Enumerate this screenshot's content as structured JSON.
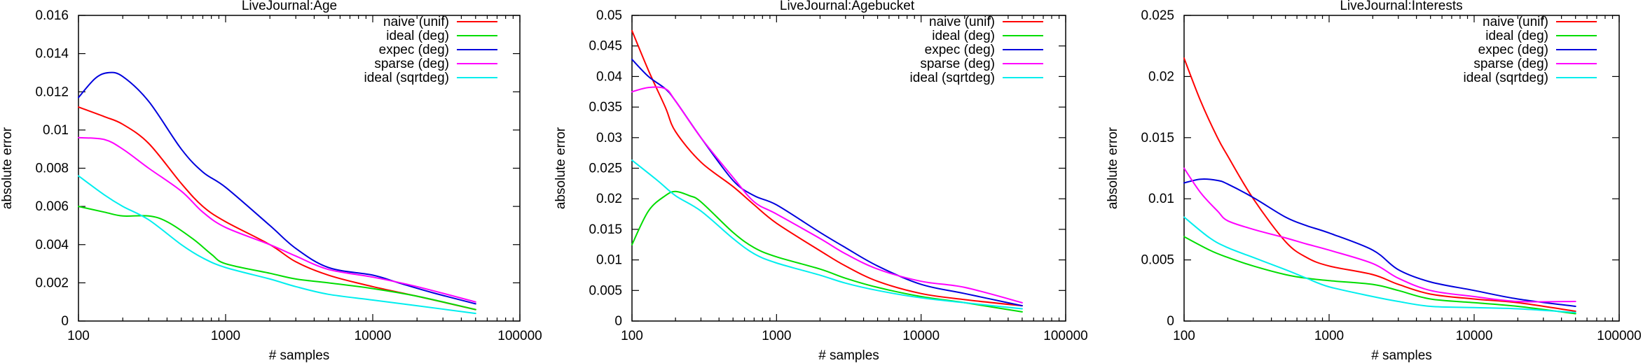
{
  "chart_data": [
    {
      "type": "line",
      "title": "LiveJournal:Age",
      "xlabel": "# samples",
      "ylabel": "absolute error",
      "xscale": "log",
      "xlim": [
        100,
        100000
      ],
      "ylim": [
        0,
        0.016
      ],
      "xticks": [
        100,
        1000,
        10000,
        100000
      ],
      "xtick_labels": [
        "100",
        "1000",
        "10000",
        "100000"
      ],
      "yticks": [
        0,
        0.002,
        0.004,
        0.006,
        0.008,
        0.01,
        0.012,
        0.014,
        0.016
      ],
      "ytick_labels": [
        "0",
        "0.002",
        "0.004",
        "0.006",
        "0.008",
        "0.01",
        "0.012",
        "0.014",
        "0.016"
      ],
      "legend_position": "top-right",
      "grid": false,
      "series": [
        {
          "name": "naive (unif)",
          "color": "#ff0000",
          "points": [
            [
              100,
              0.0112
            ],
            [
              150,
              0.0107
            ],
            [
              200,
              0.0103
            ],
            [
              300,
              0.0093
            ],
            [
              500,
              0.0072
            ],
            [
              700,
              0.006
            ],
            [
              1000,
              0.0052
            ],
            [
              2000,
              0.004
            ],
            [
              3000,
              0.0031
            ],
            [
              5000,
              0.0024
            ],
            [
              10000,
              0.0018
            ],
            [
              20000,
              0.0013
            ],
            [
              50000,
              0.0006
            ]
          ]
        },
        {
          "name": "ideal (deg)",
          "color": "#00dd00",
          "points": [
            [
              100,
              0.006
            ],
            [
              150,
              0.0057
            ],
            [
              200,
              0.0055
            ],
            [
              300,
              0.0055
            ],
            [
              400,
              0.0052
            ],
            [
              600,
              0.0043
            ],
            [
              800,
              0.0035
            ],
            [
              1000,
              0.003
            ],
            [
              2000,
              0.0025
            ],
            [
              3000,
              0.0022
            ],
            [
              5000,
              0.002
            ],
            [
              10000,
              0.0017
            ],
            [
              20000,
              0.0013
            ],
            [
              50000,
              0.0006
            ]
          ]
        },
        {
          "name": "expec (deg)",
          "color": "#0000dd",
          "points": [
            [
              100,
              0.0117
            ],
            [
              130,
              0.0127
            ],
            [
              160,
              0.013
            ],
            [
              200,
              0.0128
            ],
            [
              300,
              0.0115
            ],
            [
              500,
              0.009
            ],
            [
              700,
              0.0078
            ],
            [
              1000,
              0.007
            ],
            [
              2000,
              0.005
            ],
            [
              3000,
              0.0038
            ],
            [
              5000,
              0.0028
            ],
            [
              10000,
              0.0024
            ],
            [
              15000,
              0.002
            ],
            [
              25000,
              0.0015
            ],
            [
              50000,
              0.0009
            ]
          ]
        },
        {
          "name": "sparse (deg)",
          "color": "#ff00ff",
          "points": [
            [
              100,
              0.0096
            ],
            [
              150,
              0.0095
            ],
            [
              200,
              0.009
            ],
            [
              300,
              0.008
            ],
            [
              500,
              0.0068
            ],
            [
              700,
              0.0057
            ],
            [
              1000,
              0.0049
            ],
            [
              2000,
              0.004
            ],
            [
              3000,
              0.0034
            ],
            [
              5000,
              0.0027
            ],
            [
              10000,
              0.0023
            ],
            [
              20000,
              0.0018
            ],
            [
              50000,
              0.001
            ]
          ]
        },
        {
          "name": "ideal (sqrtdeg)",
          "color": "#00eeee",
          "points": [
            [
              100,
              0.0076
            ],
            [
              150,
              0.0066
            ],
            [
              200,
              0.006
            ],
            [
              300,
              0.0053
            ],
            [
              500,
              0.004
            ],
            [
              700,
              0.0033
            ],
            [
              1000,
              0.0028
            ],
            [
              2000,
              0.0022
            ],
            [
              3000,
              0.0018
            ],
            [
              5000,
              0.0014
            ],
            [
              10000,
              0.0011
            ],
            [
              20000,
              0.0008
            ],
            [
              50000,
              0.0004
            ]
          ]
        }
      ]
    },
    {
      "type": "line",
      "title": "LiveJournal:Agebucket",
      "xlabel": "# samples",
      "ylabel": "absolute error",
      "xscale": "log",
      "xlim": [
        100,
        100000
      ],
      "ylim": [
        0,
        0.05
      ],
      "xticks": [
        100,
        1000,
        10000,
        100000
      ],
      "xtick_labels": [
        "100",
        "1000",
        "10000",
        "100000"
      ],
      "yticks": [
        0,
        0.005,
        0.01,
        0.015,
        0.02,
        0.025,
        0.03,
        0.035,
        0.04,
        0.045,
        0.05
      ],
      "ytick_labels": [
        "0",
        "0.005",
        "0.01",
        "0.015",
        "0.02",
        "0.025",
        "0.03",
        "0.035",
        "0.04",
        "0.045",
        "0.05"
      ],
      "legend_position": "top-right",
      "grid": false,
      "series": [
        {
          "name": "naive (unif)",
          "color": "#ff0000",
          "points": [
            [
              100,
              0.0475
            ],
            [
              130,
              0.041
            ],
            [
              170,
              0.035
            ],
            [
              200,
              0.031
            ],
            [
              300,
              0.026
            ],
            [
              500,
              0.022
            ],
            [
              700,
              0.019
            ],
            [
              1000,
              0.016
            ],
            [
              2000,
              0.0115
            ],
            [
              3000,
              0.009
            ],
            [
              5000,
              0.0065
            ],
            [
              10000,
              0.0045
            ],
            [
              20000,
              0.0035
            ],
            [
              50000,
              0.0025
            ]
          ]
        },
        {
          "name": "ideal (deg)",
          "color": "#00dd00",
          "points": [
            [
              100,
              0.0125
            ],
            [
              130,
              0.018
            ],
            [
              170,
              0.0205
            ],
            [
              200,
              0.0212
            ],
            [
              250,
              0.0205
            ],
            [
              300,
              0.0195
            ],
            [
              500,
              0.0145
            ],
            [
              700,
              0.012
            ],
            [
              1000,
              0.0105
            ],
            [
              2000,
              0.0085
            ],
            [
              3000,
              0.007
            ],
            [
              5000,
              0.0055
            ],
            [
              10000,
              0.004
            ],
            [
              20000,
              0.003
            ],
            [
              50000,
              0.0015
            ]
          ]
        },
        {
          "name": "expec (deg)",
          "color": "#0000dd",
          "points": [
            [
              100,
              0.0428
            ],
            [
              130,
              0.04
            ],
            [
              170,
              0.038
            ],
            [
              200,
              0.036
            ],
            [
              300,
              0.03
            ],
            [
              500,
              0.023
            ],
            [
              700,
              0.0205
            ],
            [
              1000,
              0.019
            ],
            [
              2000,
              0.0145
            ],
            [
              3000,
              0.012
            ],
            [
              5000,
              0.009
            ],
            [
              10000,
              0.006
            ],
            [
              20000,
              0.0045
            ],
            [
              50000,
              0.0025
            ]
          ]
        },
        {
          "name": "sparse (deg)",
          "color": "#ff00ff",
          "points": [
            [
              100,
              0.0375
            ],
            [
              130,
              0.0382
            ],
            [
              170,
              0.038
            ],
            [
              200,
              0.036
            ],
            [
              300,
              0.03
            ],
            [
              500,
              0.0235
            ],
            [
              700,
              0.0195
            ],
            [
              1000,
              0.0175
            ],
            [
              2000,
              0.0135
            ],
            [
              3000,
              0.011
            ],
            [
              5000,
              0.0085
            ],
            [
              10000,
              0.0065
            ],
            [
              20000,
              0.0055
            ],
            [
              50000,
              0.003
            ]
          ]
        },
        {
          "name": "ideal (sqrtdeg)",
          "color": "#00eeee",
          "points": [
            [
              100,
              0.0263
            ],
            [
              150,
              0.023
            ],
            [
              200,
              0.0205
            ],
            [
              300,
              0.018
            ],
            [
              500,
              0.0135
            ],
            [
              700,
              0.011
            ],
            [
              1000,
              0.0095
            ],
            [
              2000,
              0.0075
            ],
            [
              3000,
              0.0062
            ],
            [
              5000,
              0.005
            ],
            [
              10000,
              0.0038
            ],
            [
              20000,
              0.003
            ],
            [
              50000,
              0.002
            ]
          ]
        }
      ]
    },
    {
      "type": "line",
      "title": "LiveJournal:Interests",
      "xlabel": "# samples",
      "ylabel": "absolute error",
      "xscale": "log",
      "xlim": [
        100,
        100000
      ],
      "ylim": [
        0,
        0.025
      ],
      "xticks": [
        100,
        1000,
        10000,
        100000
      ],
      "xtick_labels": [
        "100",
        "1000",
        "10000",
        "100000"
      ],
      "yticks": [
        0,
        0.005,
        0.01,
        0.015,
        0.02,
        0.025
      ],
      "ytick_labels": [
        "0",
        "0.005",
        "0.01",
        "0.015",
        "0.02",
        "0.025"
      ],
      "legend_position": "top-right",
      "grid": false,
      "series": [
        {
          "name": "naive (unif)",
          "color": "#ff0000",
          "points": [
            [
              100,
              0.0215
            ],
            [
              130,
              0.018
            ],
            [
              170,
              0.015
            ],
            [
              200,
              0.0135
            ],
            [
              300,
              0.01
            ],
            [
              500,
              0.0065
            ],
            [
              700,
              0.0052
            ],
            [
              1000,
              0.0045
            ],
            [
              2000,
              0.0038
            ],
            [
              3000,
              0.003
            ],
            [
              5000,
              0.0022
            ],
            [
              10000,
              0.0018
            ],
            [
              20000,
              0.0015
            ],
            [
              50000,
              0.0008
            ]
          ]
        },
        {
          "name": "ideal (deg)",
          "color": "#00dd00",
          "points": [
            [
              100,
              0.0069
            ],
            [
              150,
              0.0058
            ],
            [
              200,
              0.0052
            ],
            [
              300,
              0.0045
            ],
            [
              500,
              0.0038
            ],
            [
              700,
              0.0035
            ],
            [
              1000,
              0.0033
            ],
            [
              2000,
              0.003
            ],
            [
              3000,
              0.0025
            ],
            [
              5000,
              0.0018
            ],
            [
              10000,
              0.0015
            ],
            [
              20000,
              0.0012
            ],
            [
              50000,
              0.0006
            ]
          ]
        },
        {
          "name": "expec (deg)",
          "color": "#0000dd",
          "points": [
            [
              100,
              0.0113
            ],
            [
              130,
              0.0116
            ],
            [
              170,
              0.0115
            ],
            [
              200,
              0.0112
            ],
            [
              300,
              0.0101
            ],
            [
              500,
              0.0085
            ],
            [
              700,
              0.0078
            ],
            [
              1000,
              0.0072
            ],
            [
              2000,
              0.0058
            ],
            [
              3000,
              0.0042
            ],
            [
              5000,
              0.0032
            ],
            [
              10000,
              0.0025
            ],
            [
              20000,
              0.0018
            ],
            [
              50000,
              0.0012
            ]
          ]
        },
        {
          "name": "sparse (deg)",
          "color": "#ff00ff",
          "points": [
            [
              100,
              0.0125
            ],
            [
              130,
              0.0105
            ],
            [
              170,
              0.009
            ],
            [
              200,
              0.0082
            ],
            [
              300,
              0.0075
            ],
            [
              500,
              0.0068
            ],
            [
              700,
              0.0063
            ],
            [
              1000,
              0.0058
            ],
            [
              2000,
              0.0047
            ],
            [
              3000,
              0.0035
            ],
            [
              5000,
              0.0025
            ],
            [
              10000,
              0.002
            ],
            [
              20000,
              0.0016
            ],
            [
              50000,
              0.0016
            ]
          ]
        },
        {
          "name": "ideal (sqrtdeg)",
          "color": "#00eeee",
          "points": [
            [
              100,
              0.0085
            ],
            [
              150,
              0.0068
            ],
            [
              200,
              0.006
            ],
            [
              300,
              0.0052
            ],
            [
              500,
              0.0042
            ],
            [
              700,
              0.0035
            ],
            [
              1000,
              0.0028
            ],
            [
              2000,
              0.002
            ],
            [
              3000,
              0.0016
            ],
            [
              5000,
              0.0012
            ],
            [
              10000,
              0.0011
            ],
            [
              20000,
              0.001
            ],
            [
              50000,
              0.0007
            ]
          ]
        }
      ]
    }
  ]
}
